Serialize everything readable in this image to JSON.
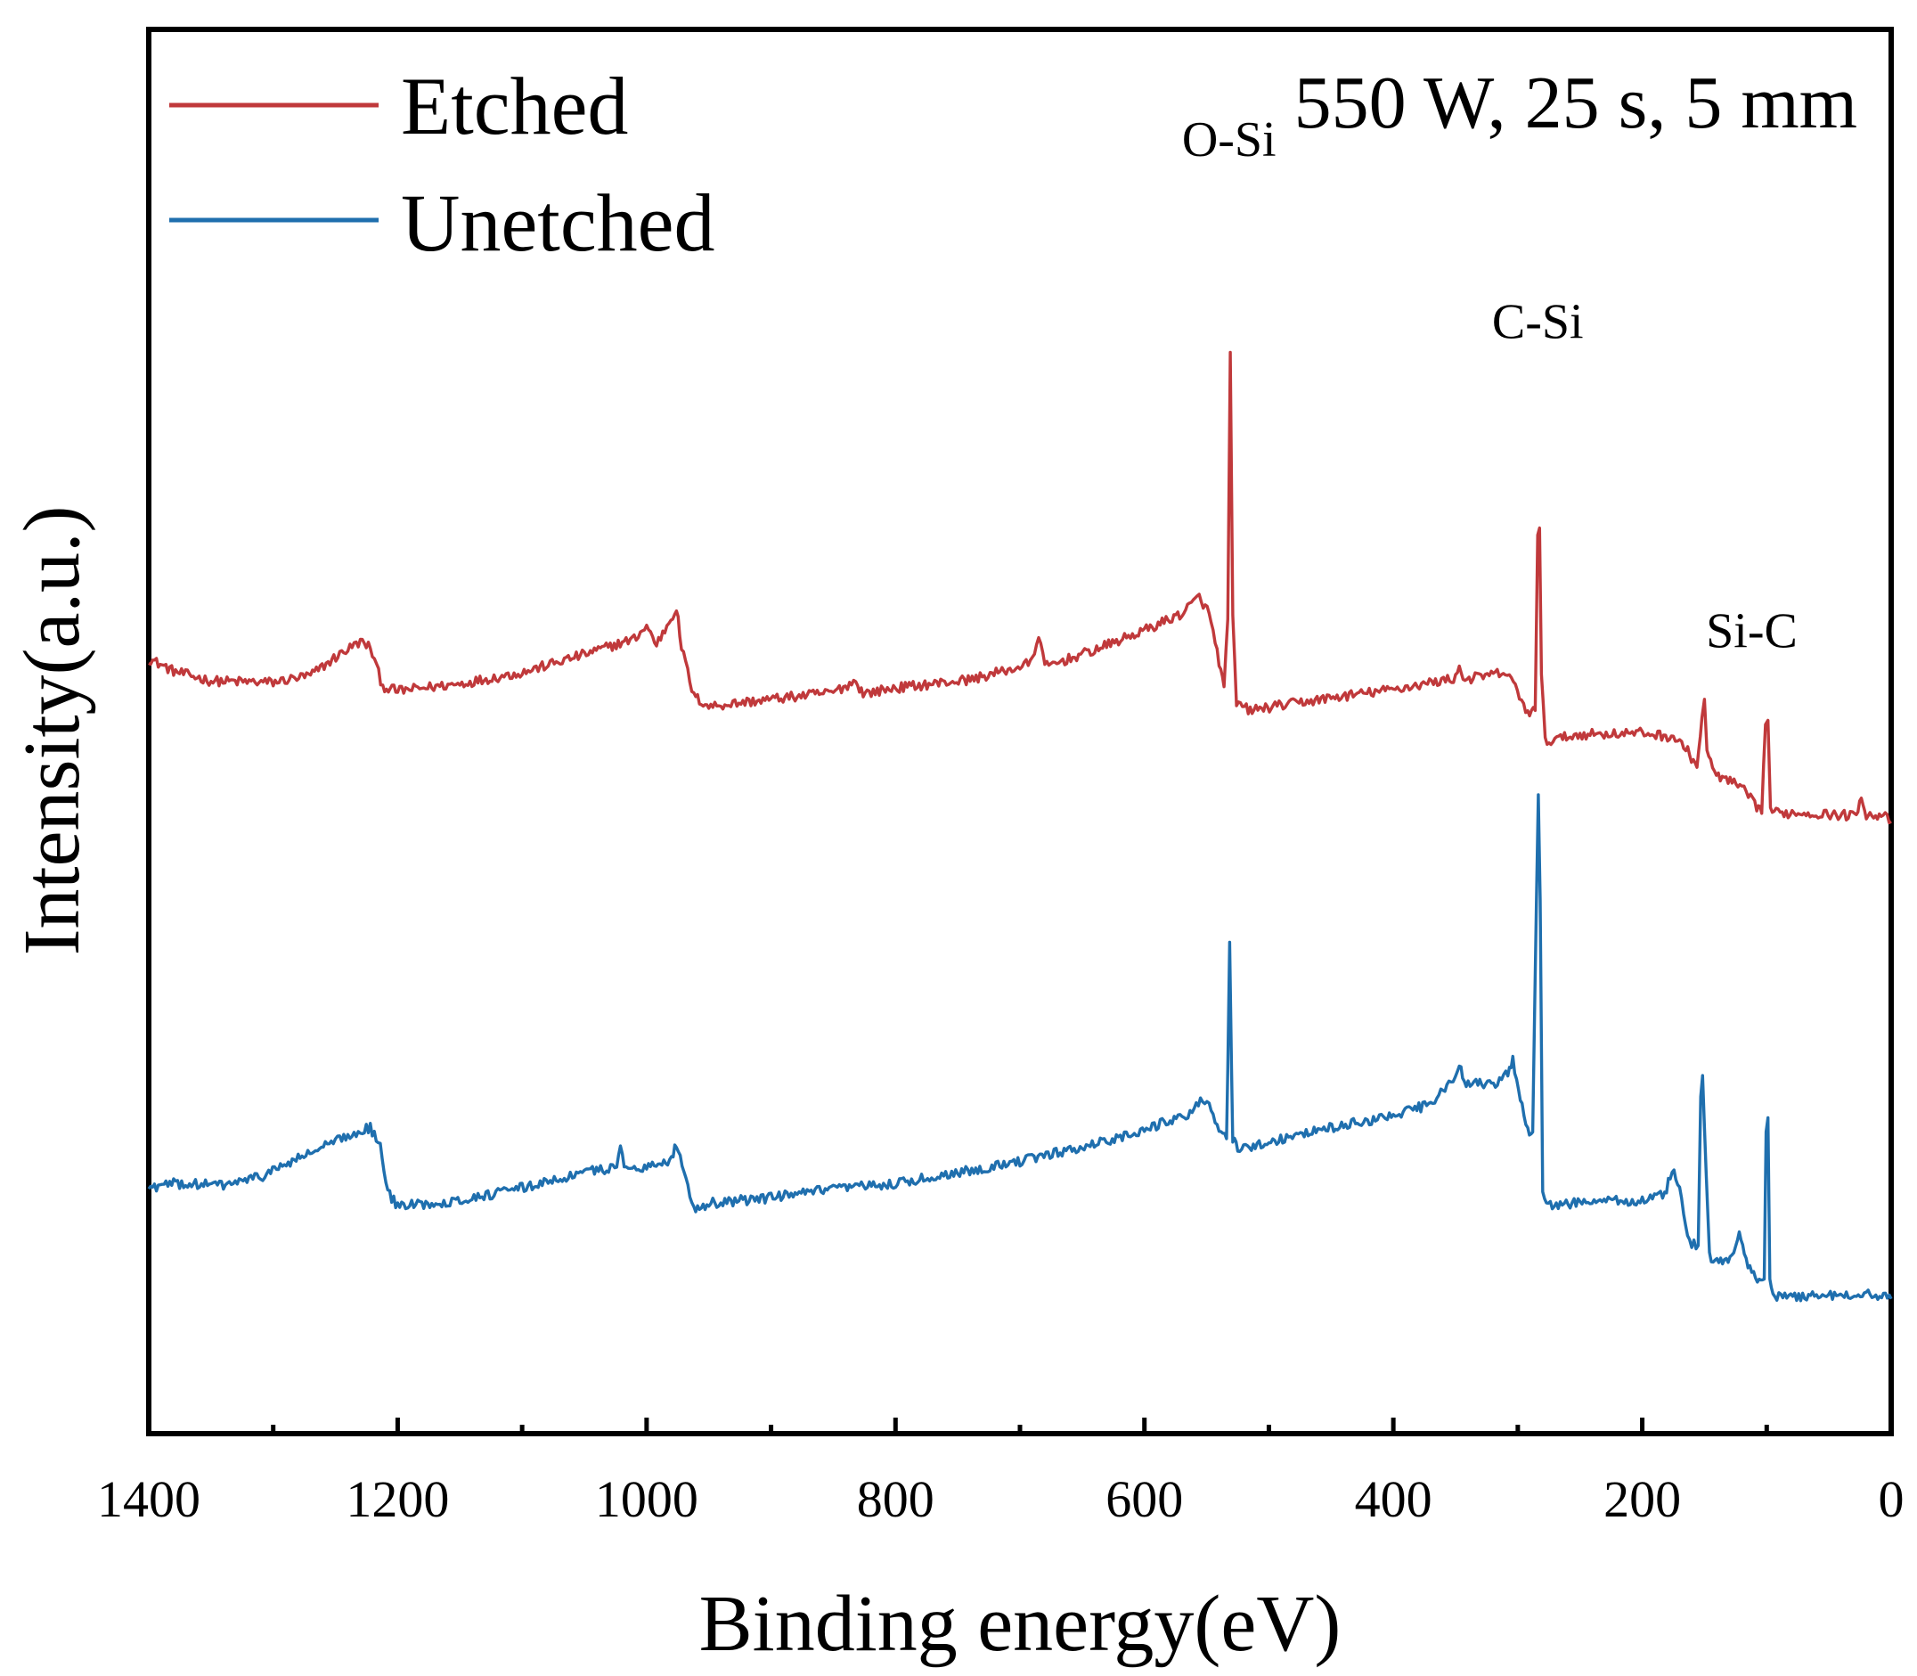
{
  "chart_data": {
    "type": "line",
    "title": "",
    "xlabel": "Binding energy(eV)",
    "ylabel": "Intensity(a.u.)",
    "xlim": [
      1400,
      0
    ],
    "x_reversed": true,
    "y_ticks_shown": false,
    "ylim": [
      0,
      100
    ],
    "x_ticks": [
      1400,
      1200,
      1000,
      800,
      600,
      400,
      200,
      0
    ],
    "x_tick_labels": [
      "1400",
      "1200",
      "1000",
      "800",
      "600",
      "400",
      "200",
      "0"
    ],
    "x_minor_ticks": [
      1300,
      1100,
      900,
      700,
      500,
      300,
      100
    ],
    "legend": {
      "position": "top-left",
      "entries": [
        "Etched",
        "Unetched"
      ]
    },
    "condition_text": "550 W, 25 s, 5 mm",
    "annotations": [
      {
        "text": "O-Si",
        "x": 532,
        "y": 91
      },
      {
        "text": "C-Si",
        "x": 284,
        "y": 78
      },
      {
        "text": "Si-C",
        "x": 112,
        "y": 56
      }
    ],
    "series": [
      {
        "name": "Etched",
        "color": "#c0393b",
        "noise": 0.7,
        "points": [
          [
            1400,
            55.2
          ],
          [
            1380,
            54.3
          ],
          [
            1350,
            53.6
          ],
          [
            1300,
            53.5
          ],
          [
            1270,
            54.0
          ],
          [
            1245,
            55.6
          ],
          [
            1230,
            56.4
          ],
          [
            1222,
            56.0
          ],
          [
            1212,
            53.2
          ],
          [
            1200,
            52.9
          ],
          [
            1150,
            53.4
          ],
          [
            1100,
            54.2
          ],
          [
            1050,
            55.5
          ],
          [
            1010,
            56.6
          ],
          [
            1000,
            57.5
          ],
          [
            992,
            56.2
          ],
          [
            982,
            57.8
          ],
          [
            976,
            58.8
          ],
          [
            972,
            56.0
          ],
          [
            962,
            52.5
          ],
          [
            950,
            51.8
          ],
          [
            900,
            52.3
          ],
          [
            850,
            52.8
          ],
          [
            832,
            53.6
          ],
          [
            826,
            52.7
          ],
          [
            800,
            53.1
          ],
          [
            740,
            53.7
          ],
          [
            700,
            54.6
          ],
          [
            690,
            55.0
          ],
          [
            685,
            57.0
          ],
          [
            680,
            54.6
          ],
          [
            640,
            55.8
          ],
          [
            600,
            57.2
          ],
          [
            570,
            58.4
          ],
          [
            556,
            59.6
          ],
          [
            548,
            58.4
          ],
          [
            540,
            55.0
          ],
          [
            536,
            53.0
          ],
          [
            533,
            58.0
          ],
          [
            531,
            77.0
          ],
          [
            529,
            58.0
          ],
          [
            526,
            52.0
          ],
          [
            515,
            51.5
          ],
          [
            495,
            51.8
          ],
          [
            450,
            52.4
          ],
          [
            400,
            53.0
          ],
          [
            350,
            53.8
          ],
          [
            347,
            54.8
          ],
          [
            344,
            53.7
          ],
          [
            310,
            54.2
          ],
          [
            302,
            53.2
          ],
          [
            292,
            51.3
          ],
          [
            286,
            51.5
          ],
          [
            284,
            64.0
          ],
          [
            282.5,
            64.5
          ],
          [
            281,
            54.0
          ],
          [
            278,
            49.3
          ],
          [
            250,
            49.8
          ],
          [
            200,
            49.9
          ],
          [
            175,
            49.6
          ],
          [
            165,
            48.8
          ],
          [
            156,
            47.5
          ],
          [
            152,
            51.0
          ],
          [
            150,
            52.3
          ],
          [
            148,
            48.5
          ],
          [
            142,
            47.0
          ],
          [
            120,
            46.0
          ],
          [
            113,
            45.2
          ],
          [
            108,
            44.5
          ],
          [
            104,
            44.5
          ],
          [
            101,
            50.5
          ],
          [
            99,
            50.8
          ],
          [
            97,
            44.6
          ],
          [
            94,
            44.2
          ],
          [
            70,
            44.2
          ],
          [
            28,
            44.0
          ],
          [
            24,
            45.6
          ],
          [
            20,
            44.0
          ],
          [
            8,
            44.1
          ],
          [
            0,
            43.6
          ]
        ]
      },
      {
        "name": "Unetched",
        "color": "#1f6fae",
        "noise": 0.7,
        "points": [
          [
            1400,
            17.5
          ],
          [
            1380,
            17.8
          ],
          [
            1340,
            17.7
          ],
          [
            1310,
            18.3
          ],
          [
            1280,
            19.6
          ],
          [
            1255,
            20.6
          ],
          [
            1240,
            21.2
          ],
          [
            1230,
            21.6
          ],
          [
            1222,
            21.8
          ],
          [
            1214,
            20.4
          ],
          [
            1208,
            17.2
          ],
          [
            1200,
            16.2
          ],
          [
            1150,
            16.6
          ],
          [
            1100,
            17.5
          ],
          [
            1050,
            18.6
          ],
          [
            1024,
            19.0
          ],
          [
            1021,
            20.4
          ],
          [
            1018,
            19.0
          ],
          [
            1000,
            19.0
          ],
          [
            980,
            19.5
          ],
          [
            976,
            20.6
          ],
          [
            970,
            18.8
          ],
          [
            962,
            16.0
          ],
          [
            950,
            16.4
          ],
          [
            900,
            16.8
          ],
          [
            850,
            17.4
          ],
          [
            800,
            17.8
          ],
          [
            750,
            18.6
          ],
          [
            700,
            19.4
          ],
          [
            650,
            20.4
          ],
          [
            600,
            21.6
          ],
          [
            565,
            22.8
          ],
          [
            555,
            23.8
          ],
          [
            548,
            23.2
          ],
          [
            540,
            21.6
          ],
          [
            534,
            21.0
          ],
          [
            533,
            26.0
          ],
          [
            531.5,
            35.0
          ],
          [
            530,
            26.0
          ],
          [
            529,
            21.0
          ],
          [
            525,
            20.2
          ],
          [
            500,
            20.8
          ],
          [
            470,
            21.4
          ],
          [
            440,
            22.0
          ],
          [
            400,
            22.6
          ],
          [
            370,
            23.5
          ],
          [
            352,
            25.2
          ],
          [
            347,
            26.2
          ],
          [
            343,
            25.0
          ],
          [
            318,
            24.8
          ],
          [
            308,
            25.8
          ],
          [
            304,
            26.6
          ],
          [
            298,
            24.0
          ],
          [
            292,
            21.5
          ],
          [
            288,
            21.2
          ],
          [
            285,
            38.0
          ],
          [
            283.5,
            45.5
          ],
          [
            282,
            38.0
          ],
          [
            280,
            17.0
          ],
          [
            277,
            16.2
          ],
          [
            250,
            16.5
          ],
          [
            200,
            16.6
          ],
          [
            182,
            17.0
          ],
          [
            176,
            18.8
          ],
          [
            170,
            17.5
          ],
          [
            162,
            13.6
          ],
          [
            155,
            13.4
          ],
          [
            153,
            24.0
          ],
          [
            151.5,
            25.5
          ],
          [
            150,
            22.0
          ],
          [
            146,
            12.6
          ],
          [
            140,
            12.2
          ],
          [
            128,
            12.4
          ],
          [
            122,
            14.2
          ],
          [
            118,
            12.6
          ],
          [
            112,
            11.4
          ],
          [
            106,
            11.0
          ],
          [
            102,
            11.0
          ],
          [
            100.5,
            21.5
          ],
          [
            99,
            22.5
          ],
          [
            97.5,
            11.0
          ],
          [
            95,
            9.8
          ],
          [
            60,
            9.8
          ],
          [
            20,
            10.0
          ],
          [
            0,
            9.6
          ]
        ]
      }
    ]
  }
}
